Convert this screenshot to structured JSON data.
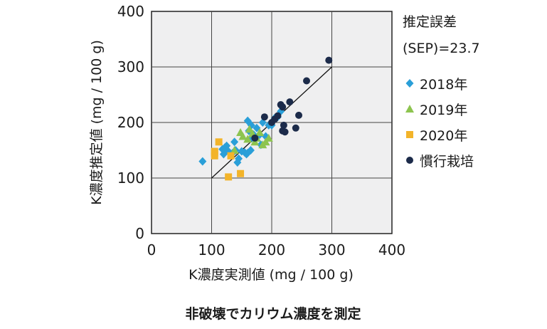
{
  "chart_data": {
    "type": "scatter",
    "xlabel": "K濃度実測値 (mg / 100 g)",
    "ylabel": "K濃度推定値 (mg / 100 g)",
    "xlim": [
      0,
      400
    ],
    "ylim": [
      0,
      400
    ],
    "xticks": [
      0,
      100,
      200,
      300,
      400
    ],
    "yticks": [
      0,
      100,
      200,
      300,
      400
    ],
    "grid": true,
    "legend_position": "right",
    "annotation": {
      "line1": "推定誤差",
      "line2": "(SEP)=23.7"
    },
    "reference_line": {
      "from": [
        100,
        100
      ],
      "to": [
        300,
        300
      ]
    },
    "caption": "非破壊でカリウム濃度を測定",
    "series": [
      {
        "name": "2018年",
        "marker": "diamond",
        "color": "#2a9fd8",
        "points": [
          [
            85,
            130
          ],
          [
            118,
            152
          ],
          [
            122,
            155
          ],
          [
            125,
            158
          ],
          [
            120,
            143
          ],
          [
            128,
            148
          ],
          [
            135,
            145
          ],
          [
            140,
            150
          ],
          [
            138,
            165
          ],
          [
            145,
            135
          ],
          [
            143,
            128
          ],
          [
            150,
            148
          ],
          [
            155,
            146
          ],
          [
            158,
            143
          ],
          [
            160,
            145
          ],
          [
            165,
            150
          ],
          [
            162,
            185
          ],
          [
            166,
            195
          ],
          [
            160,
            203
          ],
          [
            170,
            178
          ],
          [
            168,
            172
          ],
          [
            175,
            190
          ],
          [
            182,
            160
          ],
          [
            180,
            178
          ],
          [
            190,
            175
          ],
          [
            195,
            195
          ],
          [
            185,
            200
          ],
          [
            200,
            195
          ],
          [
            210,
            210
          ],
          [
            205,
            208
          ],
          [
            215,
            220
          ]
        ]
      },
      {
        "name": "2019年",
        "marker": "triangle",
        "color": "#8dc44f",
        "points": [
          [
            138,
            150
          ],
          [
            148,
            182
          ],
          [
            152,
            175
          ],
          [
            160,
            170
          ],
          [
            163,
            188
          ],
          [
            168,
            180
          ],
          [
            172,
            165
          ],
          [
            175,
            172
          ],
          [
            180,
            182
          ],
          [
            185,
            160
          ],
          [
            190,
            165
          ],
          [
            195,
            172
          ]
        ]
      },
      {
        "name": "2020年",
        "marker": "square",
        "color": "#f3b42a",
        "points": [
          [
            105,
            148
          ],
          [
            105,
            140
          ],
          [
            105,
            145
          ],
          [
            112,
            165
          ],
          [
            128,
            102
          ],
          [
            148,
            108
          ],
          [
            132,
            140
          ]
        ]
      },
      {
        "name": "慣行栽培",
        "marker": "circle",
        "color": "#1c2b4a",
        "points": [
          [
            172,
            172
          ],
          [
            188,
            210
          ],
          [
            200,
            200
          ],
          [
            205,
            206
          ],
          [
            210,
            212
          ],
          [
            215,
            232
          ],
          [
            218,
            228
          ],
          [
            218,
            185
          ],
          [
            220,
            195
          ],
          [
            222,
            183
          ],
          [
            230,
            237
          ],
          [
            240,
            190
          ],
          [
            245,
            213
          ],
          [
            258,
            275
          ],
          [
            295,
            312
          ]
        ]
      }
    ]
  }
}
